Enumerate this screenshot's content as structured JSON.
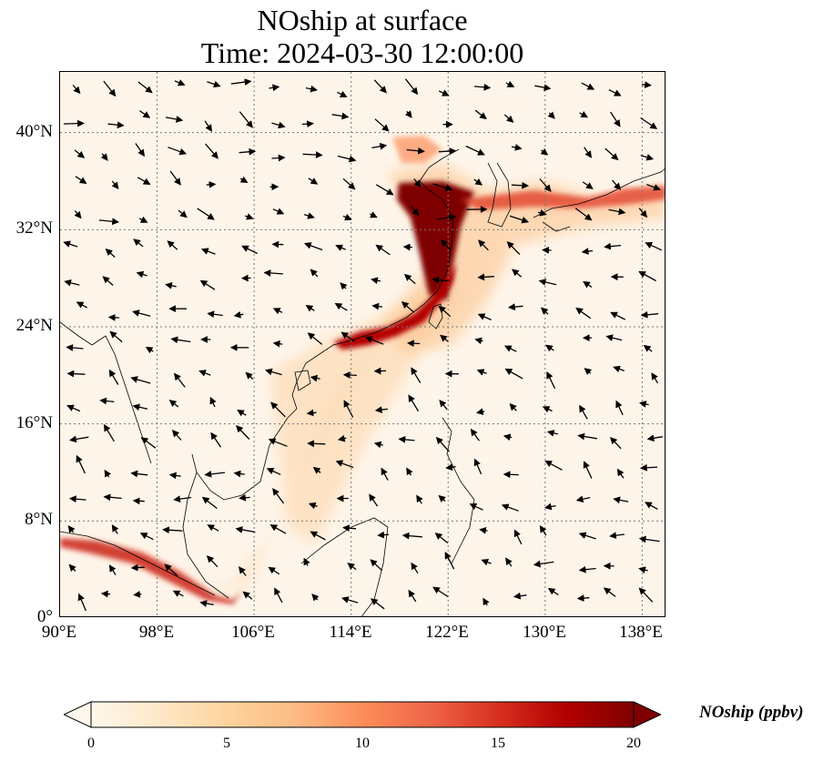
{
  "title": {
    "line1": "NOship at surface",
    "line2": "Time: 2024-03-30 12:00:00"
  },
  "map": {
    "extent": {
      "lon": [
        90,
        140
      ],
      "lat": [
        0,
        45
      ]
    },
    "lat_ticks": [
      "0°",
      "8°N",
      "16°N",
      "24°N",
      "32°N",
      "40°N"
    ],
    "lon_ticks": [
      "90°E",
      "98°E",
      "106°E",
      "114°E",
      "122°E",
      "130°E",
      "138°E"
    ],
    "gridlines": "dotted",
    "background_color": "#fef5ea"
  },
  "colorbar": {
    "label": "NOship (ppbv)",
    "cmap": "OrRd",
    "range": [
      0,
      20
    ],
    "ticks": [
      "0",
      "5",
      "10",
      "15",
      "20"
    ],
    "extend": "both",
    "colors": [
      "#fff7ec",
      "#fee8c8",
      "#fdd49e",
      "#fdbb84",
      "#fc8d59",
      "#ef6548",
      "#d7301f",
      "#b30000",
      "#7f0000"
    ]
  }
}
